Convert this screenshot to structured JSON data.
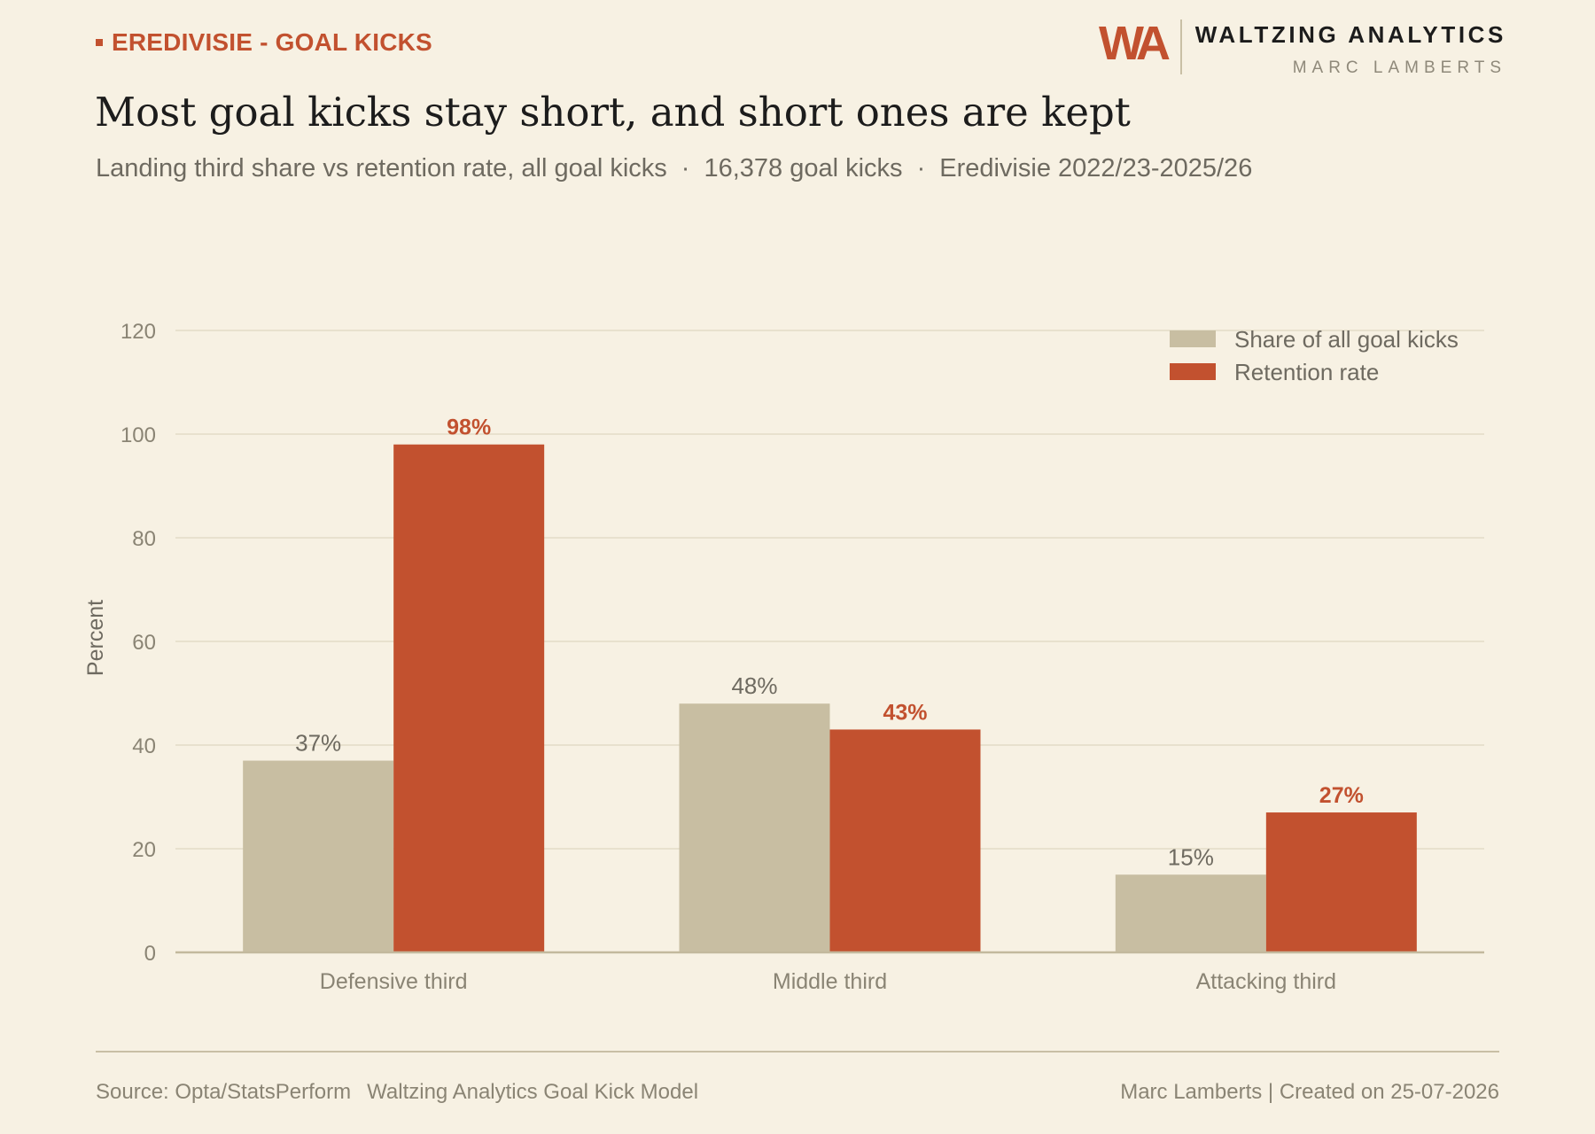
{
  "header": {
    "kicker": "EREDIVISIE - GOAL KICKS",
    "title": "Most goal kicks stay short, and short ones are kept",
    "subtitle_parts": [
      "Landing third share vs retention rate, all goal kicks",
      "16,378 goal kicks",
      "Eredivisie 2022/23-2025/26"
    ],
    "separator": "·"
  },
  "brand": {
    "mark": "WA",
    "name": "WALTZING ANALYTICS",
    "author": "MARC LAMBERTS",
    "accent_color": "#c2512f"
  },
  "chart_data": {
    "type": "bar",
    "categories": [
      "Defensive third",
      "Middle third",
      "Attacking third"
    ],
    "series": [
      {
        "name": "Share of all goal kicks",
        "values": [
          37,
          48,
          15
        ],
        "value_labels": [
          "37%",
          "48%",
          "15%"
        ],
        "color": "#c8bea2"
      },
      {
        "name": "Retention rate",
        "values": [
          98,
          43,
          27
        ],
        "value_labels": [
          "98%",
          "43%",
          "27%"
        ],
        "color": "#c2512f"
      }
    ],
    "ylabel": "Percent",
    "xlabel": "",
    "ylim": [
      0,
      120
    ],
    "yticks": [
      0,
      20,
      40,
      60,
      80,
      100,
      120
    ],
    "grid": true,
    "legend_position": "top-right"
  },
  "footer": {
    "source": "Source: Opta/StatsPerform",
    "model": "Waltzing Analytics Goal Kick Model",
    "credit": "Marc Lamberts | Created on 25-07-2026"
  }
}
